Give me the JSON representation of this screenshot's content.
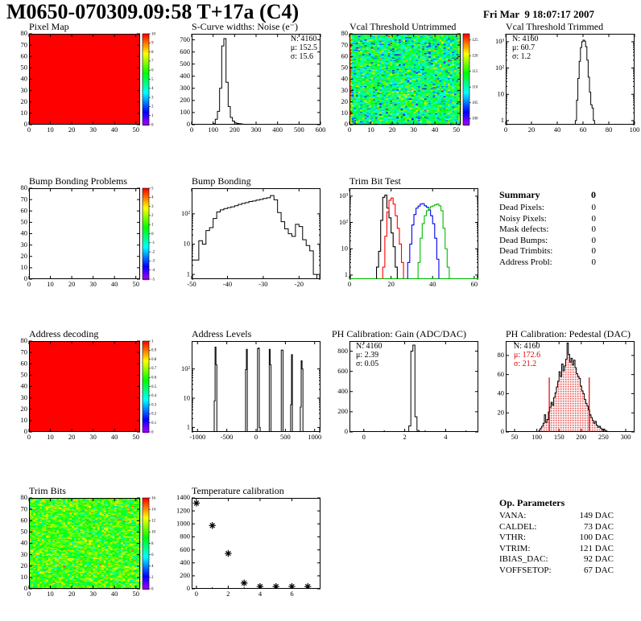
{
  "header": {
    "title": "M0650-070309.09:58 T+17a (C4)",
    "date": "Fri Mar  9 18:07:17 2007"
  },
  "colors": {
    "frame": "#000000",
    "hist_line": "#000000",
    "stat_red": "#e00000",
    "trim_black": "#000000",
    "trim_red": "#ff0000",
    "trim_blue": "#0000ee",
    "trim_green": "#00bb00",
    "pedestal_fill_dot": "#e00000",
    "uniform_red": "#ff0000"
  },
  "summary": {
    "title": "Summary",
    "grade": "0",
    "rows": [
      {
        "label": "Dead Pixels:",
        "value": "0"
      },
      {
        "label": "Noisy Pixels:",
        "value": "0"
      },
      {
        "label": "Mask defects:",
        "value": "0"
      },
      {
        "label": "Dead Bumps:",
        "value": "0"
      },
      {
        "label": "Dead Trimbits:",
        "value": "0"
      },
      {
        "label": "Address Probl:",
        "value": "0"
      }
    ]
  },
  "op_parameters": {
    "title": "Op. Parameters",
    "rows": [
      {
        "label": "VANA:",
        "value": "149 DAC"
      },
      {
        "label": "CALDEL:",
        "value": "73 DAC"
      },
      {
        "label": "VTHR:",
        "value": "100 DAC"
      },
      {
        "label": "VTRIM:",
        "value": "121 DAC"
      },
      {
        "label": "IBIAS_DAC:",
        "value": "92 DAC"
      },
      {
        "label": "VOFFSETOP:",
        "value": "67 DAC"
      }
    ]
  },
  "chart_data": [
    {
      "id": "pixel_map",
      "type": "heatmap",
      "title": "Pixel Map",
      "xlim": [
        0,
        52
      ],
      "ylim": [
        0,
        80
      ],
      "xticks": [
        0,
        10,
        20,
        30,
        40,
        50
      ],
      "yticks": [
        0,
        10,
        20,
        30,
        40,
        50,
        60,
        70,
        80
      ],
      "fill": "uniform",
      "uniform_value": 10,
      "zlim": [
        0,
        10
      ],
      "colorbar_ticks": [
        0,
        1,
        2,
        3,
        4,
        5,
        6,
        7,
        8,
        9,
        10
      ]
    },
    {
      "id": "scurve_noise",
      "type": "histogram",
      "title": "S-Curve widths: Noise (e⁻)",
      "stats": [
        "N: 4160",
        "μ: 152.5",
        "σ: 15.6"
      ],
      "stats_pos": "right",
      "xlim": [
        0,
        600
      ],
      "ylim": [
        0,
        750
      ],
      "yscale": "linear",
      "xticks": [
        0,
        100,
        200,
        300,
        400,
        500,
        600
      ],
      "yticks": [
        0,
        100,
        200,
        300,
        400,
        500,
        600,
        700
      ],
      "binw": 10,
      "bins": [
        [
          100,
          8
        ],
        [
          110,
          45
        ],
        [
          120,
          110
        ],
        [
          130,
          300
        ],
        [
          140,
          650
        ],
        [
          150,
          710
        ],
        [
          160,
          350
        ],
        [
          170,
          150
        ],
        [
          180,
          60
        ],
        [
          190,
          30
        ],
        [
          200,
          15
        ],
        [
          210,
          10
        ],
        [
          220,
          8
        ],
        [
          230,
          5
        ],
        [
          240,
          3
        ],
        [
          250,
          2
        ]
      ]
    },
    {
      "id": "vcal_untrimmed",
      "type": "heatmap",
      "title": "Vcal Threshold Untrimmed",
      "xlim": [
        0,
        52
      ],
      "ylim": [
        0,
        80
      ],
      "xticks": [
        0,
        10,
        20,
        30,
        40,
        50
      ],
      "yticks": [
        0,
        10,
        20,
        30,
        40,
        50,
        60,
        70,
        80
      ],
      "fill": "noise",
      "noise_mean": 112,
      "noise_sd": 4,
      "seed": 7,
      "col_overrides": {
        "0": 122,
        "51": 116
      },
      "zlim": [
        98,
        127
      ],
      "colorbar_ticks": [
        100,
        105,
        110,
        115,
        120,
        125
      ]
    },
    {
      "id": "vcal_trimmed",
      "type": "histogram",
      "title": "Vcal Threshold Trimmed",
      "stats": [
        "N: 4160",
        "μ: 60.7",
        "σ:  1.2"
      ],
      "stats_pos": "left",
      "xlim": [
        0,
        100
      ],
      "ylim": [
        0.7,
        2000
      ],
      "yscale": "log",
      "xticks": [
        0,
        20,
        40,
        60,
        80,
        100
      ],
      "binw": 1,
      "bins": [
        [
          54,
          1
        ],
        [
          55,
          6
        ],
        [
          56,
          40
        ],
        [
          57,
          180
        ],
        [
          58,
          600
        ],
        [
          59,
          1000
        ],
        [
          60,
          1150
        ],
        [
          61,
          1050
        ],
        [
          62,
          650
        ],
        [
          63,
          200
        ],
        [
          64,
          45
        ],
        [
          65,
          12
        ],
        [
          66,
          4
        ],
        [
          67,
          3
        ],
        [
          68,
          1
        ]
      ]
    },
    {
      "id": "bump_problems",
      "type": "heatmap",
      "title": "Bump Bonding Problems",
      "xlim": [
        0,
        52
      ],
      "ylim": [
        0,
        80
      ],
      "xticks": [
        0,
        10,
        20,
        30,
        40,
        50
      ],
      "yticks": [
        0,
        10,
        20,
        30,
        40,
        50,
        60,
        70,
        80
      ],
      "fill": "empty",
      "zlim": [
        -5,
        5
      ],
      "colorbar_ticks": [
        -5,
        -4,
        -3,
        -2,
        -1,
        0,
        1,
        2,
        3,
        4,
        5
      ]
    },
    {
      "id": "bump_bonding",
      "type": "histogram",
      "title": "Bump Bonding",
      "xlim": [
        -50,
        -14
      ],
      "ylim": [
        0.7,
        700
      ],
      "yscale": "log",
      "xticks": [
        -50,
        -40,
        -30,
        -20
      ],
      "binw": 1,
      "bins": [
        [
          -50,
          3
        ],
        [
          -49,
          3
        ],
        [
          -48,
          13
        ],
        [
          -47,
          10
        ],
        [
          -46,
          28
        ],
        [
          -45,
          35
        ],
        [
          -44,
          70
        ],
        [
          -43,
          115
        ],
        [
          -42,
          135
        ],
        [
          -41,
          150
        ],
        [
          -40,
          160
        ],
        [
          -39,
          170
        ],
        [
          -38,
          185
        ],
        [
          -37,
          205
        ],
        [
          -36,
          220
        ],
        [
          -35,
          235
        ],
        [
          -34,
          255
        ],
        [
          -33,
          265
        ],
        [
          -32,
          285
        ],
        [
          -31,
          300
        ],
        [
          -30,
          320
        ],
        [
          -29,
          340
        ],
        [
          -28,
          400
        ],
        [
          -27,
          290
        ],
        [
          -26,
          110
        ],
        [
          -25,
          55
        ],
        [
          -24,
          32
        ],
        [
          -23,
          22
        ],
        [
          -22,
          18
        ],
        [
          -21,
          45
        ],
        [
          -20,
          38
        ],
        [
          -19,
          14
        ],
        [
          -18,
          9
        ],
        [
          -17,
          6
        ],
        [
          -16,
          1
        ]
      ]
    },
    {
      "id": "trim_bit_test",
      "type": "multi-histogram",
      "title": "Trim Bit Test",
      "xlim": [
        0,
        62
      ],
      "ylim": [
        0.7,
        2000
      ],
      "yscale": "log",
      "xticks": [
        0,
        20,
        40,
        60
      ],
      "binw": 1,
      "baseline_color": "#00bb00",
      "series": [
        {
          "name": "trim-black",
          "color": "#000000",
          "bins": [
            [
              13,
              2
            ],
            [
              14,
              8
            ],
            [
              15,
              120
            ],
            [
              16,
              900
            ],
            [
              17,
              1100
            ],
            [
              18,
              350
            ],
            [
              19,
              150
            ],
            [
              20,
              40
            ],
            [
              21,
              12
            ],
            [
              22,
              2
            ]
          ]
        },
        {
          "name": "trim-red",
          "color": "#ff0000",
          "bins": [
            [
              16,
              2
            ],
            [
              17,
              30
            ],
            [
              18,
              250
            ],
            [
              19,
              700
            ],
            [
              20,
              850
            ],
            [
              21,
              500
            ],
            [
              22,
              180
            ],
            [
              23,
              60
            ],
            [
              24,
              15
            ],
            [
              25,
              3
            ]
          ]
        },
        {
          "name": "trim-blue",
          "color": "#0000ee",
          "bins": [
            [
              28,
              3
            ],
            [
              29,
              15
            ],
            [
              30,
              80
            ],
            [
              31,
              200
            ],
            [
              32,
              350
            ],
            [
              33,
              420
            ],
            [
              34,
              500
            ],
            [
              35,
              520
            ],
            [
              36,
              430
            ],
            [
              37,
              380
            ],
            [
              38,
              300
            ],
            [
              39,
              180
            ],
            [
              40,
              90
            ],
            [
              41,
              25
            ],
            [
              42,
              4
            ]
          ]
        },
        {
          "name": "trim-green",
          "color": "#00bb00",
          "bins": [
            [
              33,
              3
            ],
            [
              34,
              25
            ],
            [
              35,
              90
            ],
            [
              36,
              180
            ],
            [
              37,
              280
            ],
            [
              38,
              350
            ],
            [
              39,
              400
            ],
            [
              40,
              430
            ],
            [
              41,
              470
            ],
            [
              42,
              500
            ],
            [
              43,
              430
            ],
            [
              44,
              280
            ],
            [
              45,
              60
            ],
            [
              46,
              10
            ],
            [
              47,
              2
            ]
          ]
        }
      ]
    },
    {
      "id": "address_decoding",
      "type": "heatmap",
      "title": "Address decoding",
      "xlim": [
        0,
        52
      ],
      "ylim": [
        0,
        80
      ],
      "xticks": [
        0,
        10,
        20,
        30,
        40,
        50
      ],
      "yticks": [
        0,
        10,
        20,
        30,
        40,
        50,
        60,
        70,
        80
      ],
      "fill": "uniform",
      "uniform_value": 1,
      "zlim": [
        0,
        1
      ],
      "colorbar_ticks": [
        0,
        0.1,
        0.2,
        0.3,
        0.4,
        0.5,
        0.6,
        0.7,
        0.8,
        0.9,
        1
      ]
    },
    {
      "id": "address_levels",
      "type": "histogram",
      "title": "Address Levels",
      "xlim": [
        -1100,
        1100
      ],
      "ylim": [
        0.7,
        900
      ],
      "yscale": "log",
      "xticks": [
        -1000,
        -500,
        0,
        500,
        1000
      ],
      "binw": 15,
      "bins": [
        [
          -715,
          8
        ],
        [
          -700,
          560
        ],
        [
          -685,
          140
        ],
        [
          -180,
          95
        ],
        [
          -165,
          470
        ],
        [
          25,
          500
        ],
        [
          40,
          520
        ],
        [
          55,
          1
        ],
        [
          225,
          470
        ],
        [
          240,
          140
        ],
        [
          430,
          440
        ],
        [
          445,
          440
        ],
        [
          590,
          6
        ],
        [
          605,
          310
        ],
        [
          755,
          5
        ],
        [
          770,
          190
        ],
        [
          785,
          100
        ]
      ]
    },
    {
      "id": "ph_gain",
      "type": "histogram",
      "title": "PH Calibration: Gain (ADC/DAC)",
      "stats": [
        "N: 4160",
        "μ: 2.39",
        "σ: 0.05"
      ],
      "stats_pos": "left",
      "xlim": [
        -0.7,
        5.6
      ],
      "ylim": [
        0,
        900
      ],
      "yscale": "linear",
      "xticks": [
        0,
        2,
        4
      ],
      "xminor": 1,
      "yticks": [
        0,
        200,
        400,
        600,
        800
      ],
      "binw": 0.1,
      "bins": [
        [
          2.1,
          5
        ],
        [
          2.2,
          60
        ],
        [
          2.3,
          800
        ],
        [
          2.4,
          860
        ],
        [
          2.5,
          150
        ],
        [
          2.6,
          15
        ],
        [
          2.7,
          3
        ]
      ]
    },
    {
      "id": "ph_pedestal",
      "type": "histogram",
      "title": "PH Calibration: Pedestal (DAC)",
      "stats": [
        "N: 4160",
        "μ: 172.6",
        "σ: 21.2"
      ],
      "stats_pos": "left",
      "stats_red": [
        1,
        2
      ],
      "xlim": [
        30,
        320
      ],
      "ylim": [
        0,
        95
      ],
      "yscale": "linear",
      "xticks": [
        50,
        100,
        150,
        200,
        250,
        300
      ],
      "yticks": [
        0,
        20,
        40,
        60,
        80
      ],
      "binw": 3,
      "fill_style": "red-dots",
      "vlines": [
        {
          "x": 128,
          "h": 57
        },
        {
          "x": 218,
          "h": 57
        }
      ],
      "bins": [
        [
          105,
          2
        ],
        [
          108,
          4
        ],
        [
          111,
          6
        ],
        [
          114,
          9
        ],
        [
          117,
          18
        ],
        [
          120,
          10
        ],
        [
          123,
          13
        ],
        [
          126,
          21
        ],
        [
          129,
          26
        ],
        [
          132,
          31
        ],
        [
          135,
          28
        ],
        [
          138,
          36
        ],
        [
          141,
          41
        ],
        [
          144,
          47
        ],
        [
          147,
          53
        ],
        [
          150,
          63
        ],
        [
          153,
          58
        ],
        [
          156,
          71
        ],
        [
          159,
          64
        ],
        [
          162,
          69
        ],
        [
          165,
          76
        ],
        [
          168,
          93
        ],
        [
          171,
          81
        ],
        [
          174,
          73
        ],
        [
          177,
          77
        ],
        [
          180,
          70
        ],
        [
          183,
          75
        ],
        [
          186,
          67
        ],
        [
          189,
          61
        ],
        [
          192,
          58
        ],
        [
          195,
          56
        ],
        [
          198,
          48
        ],
        [
          201,
          43
        ],
        [
          204,
          40
        ],
        [
          207,
          34
        ],
        [
          210,
          30
        ],
        [
          213,
          27
        ],
        [
          216,
          23
        ],
        [
          219,
          18
        ],
        [
          222,
          15
        ],
        [
          225,
          12
        ],
        [
          228,
          9
        ],
        [
          231,
          11
        ],
        [
          234,
          7
        ],
        [
          237,
          5
        ],
        [
          240,
          6
        ],
        [
          243,
          4
        ],
        [
          246,
          2
        ],
        [
          249,
          3
        ],
        [
          252,
          2
        ],
        [
          255,
          1
        ]
      ]
    },
    {
      "id": "trim_bits",
      "type": "heatmap",
      "title": "Trim Bits",
      "xlim": [
        0,
        52
      ],
      "ylim": [
        0,
        80
      ],
      "xticks": [
        0,
        10,
        20,
        30,
        40,
        50
      ],
      "yticks": [
        0,
        10,
        20,
        30,
        40,
        50,
        60,
        70,
        80
      ],
      "fill": "noise",
      "noise_mean": 9.8,
      "noise_sd": 1.7,
      "seed": 42,
      "zlim": [
        0,
        16
      ],
      "colorbar_ticks": [
        0,
        2,
        4,
        6,
        8,
        10,
        12,
        14,
        16
      ]
    },
    {
      "id": "temperature_calibration",
      "type": "scatter",
      "title": "Temperature calibration",
      "xlim": [
        -0.3,
        7.8
      ],
      "ylim": [
        0,
        1400
      ],
      "yscale": "linear",
      "xticks": [
        0,
        2,
        4,
        6
      ],
      "xminor": 1,
      "yticks": [
        0,
        200,
        400,
        600,
        800,
        1000,
        1200,
        1400
      ],
      "marker": "asterisk",
      "points": [
        [
          0,
          1320
        ],
        [
          1,
          975
        ],
        [
          2,
          545
        ],
        [
          3,
          90
        ],
        [
          4,
          35
        ],
        [
          5,
          35
        ],
        [
          6,
          35
        ],
        [
          7,
          35
        ]
      ]
    }
  ]
}
